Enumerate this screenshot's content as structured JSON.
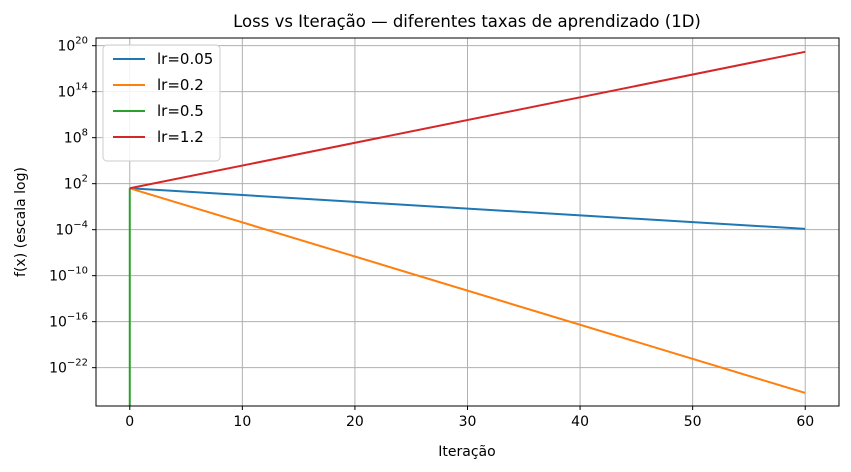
{
  "chart_data": {
    "type": "line",
    "title": "Loss vs Iteração — diferentes taxas de aprendizado (1D)",
    "xlabel": "Iteração",
    "ylabel": "f(x) (escala log)",
    "yscale": "log",
    "xlim": [
      -3,
      63
    ],
    "ylim_log10": [
      -27,
      21
    ],
    "x_ticks": [
      0,
      10,
      20,
      30,
      40,
      50,
      60
    ],
    "y_ticks_exponent": [
      20,
      14,
      8,
      2,
      -4,
      -10,
      -16,
      -22
    ],
    "grid": true,
    "legend_position": "top-left",
    "series": [
      {
        "name": "lr=0.05",
        "color": "#1f77b4",
        "x": [
          0,
          60
        ],
        "log10_y": [
          1.4,
          -3.9
        ]
      },
      {
        "name": "lr=0.2",
        "color": "#ff7f0e",
        "x": [
          0,
          60
        ],
        "log10_y": [
          1.4,
          -25.3
        ]
      },
      {
        "name": "lr=0.5",
        "color": "#2ca02c",
        "x": [
          0,
          0
        ],
        "log10_y": [
          1.4,
          -27
        ]
      },
      {
        "name": "lr=1.2",
        "color": "#d62728",
        "x": [
          0,
          60
        ],
        "log10_y": [
          1.4,
          19.2
        ]
      }
    ]
  }
}
